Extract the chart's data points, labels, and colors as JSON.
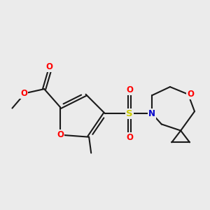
{
  "background_color": "#ebebeb",
  "bond_color": "#1a1a1a",
  "atom_colors": {
    "O": "#ff0000",
    "N": "#0000cc",
    "S": "#cccc00",
    "C": "#1a1a1a"
  },
  "figsize": [
    3.0,
    3.0
  ],
  "dpi": 100
}
